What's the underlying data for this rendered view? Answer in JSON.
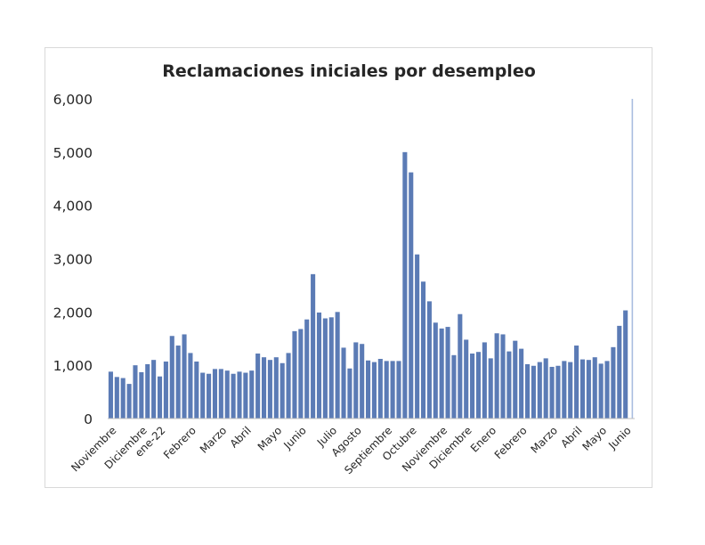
{
  "chart_data": {
    "type": "bar",
    "title": "Reclamaciones iniciales por desempleo",
    "xlabel": "",
    "ylabel": "",
    "ylim": [
      0,
      6000
    ],
    "yticks": [
      "0",
      "1,000",
      "2,000",
      "3,000",
      "4,000",
      "5,000",
      "6,000"
    ],
    "grid": false,
    "legend": "none",
    "bar_color": "#5b7bb5",
    "axis_color": "#bfbfbf",
    "values": [
      880,
      780,
      760,
      650,
      1000,
      870,
      1020,
      1100,
      790,
      1070,
      1550,
      1370,
      1580,
      1230,
      1070,
      860,
      840,
      930,
      930,
      900,
      840,
      880,
      860,
      900,
      1220,
      1150,
      1100,
      1150,
      1040,
      1230,
      1640,
      1680,
      1860,
      2710,
      1990,
      1880,
      1900,
      2000,
      1330,
      940,
      1430,
      1400,
      1090,
      1060,
      1120,
      1080,
      1080,
      1080,
      5000,
      4620,
      3080,
      2570,
      2200,
      1800,
      1690,
      1720,
      1190,
      1960,
      1480,
      1220,
      1250,
      1430,
      1130,
      1600,
      1580,
      1260,
      1460,
      1310,
      1020,
      990,
      1060,
      1130,
      970,
      990,
      1080,
      1060,
      1370,
      1110,
      1100,
      1150,
      1030,
      1080,
      1340,
      1740,
      2030,
      6000
    ],
    "category_labels": [
      {
        "index": 1,
        "label": "Noviembre"
      },
      {
        "index": 6,
        "label": "Diciembre"
      },
      {
        "index": 9,
        "label": "ene-22"
      },
      {
        "index": 14,
        "label": "Febrero"
      },
      {
        "index": 19,
        "label": "Marzo"
      },
      {
        "index": 23,
        "label": "Abril"
      },
      {
        "index": 28,
        "label": "Mayo"
      },
      {
        "index": 32,
        "label": "Junio"
      },
      {
        "index": 37,
        "label": "Julio"
      },
      {
        "index": 41,
        "label": "Agosto"
      },
      {
        "index": 46,
        "label": "Septiembre"
      },
      {
        "index": 50,
        "label": "Octubre"
      },
      {
        "index": 55,
        "label": "Noviembre"
      },
      {
        "index": 59,
        "label": "Diciembre"
      },
      {
        "index": 63,
        "label": "Enero"
      },
      {
        "index": 68,
        "label": "Febrero"
      },
      {
        "index": 73,
        "label": "Marzo"
      },
      {
        "index": 77,
        "label": "Abril"
      },
      {
        "index": 81,
        "label": "Mayo"
      },
      {
        "index": 85,
        "label": "Junio"
      }
    ]
  }
}
